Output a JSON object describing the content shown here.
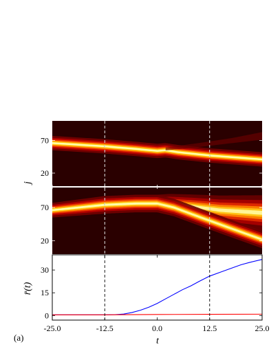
{
  "panel_tag": "(a)",
  "x_axis": {
    "label": "t",
    "range": [
      -25.0,
      25.0
    ],
    "ticks": [
      -25.0,
      -12.5,
      0.0,
      12.5,
      25.0
    ],
    "tick_labels": [
      "-25.0",
      "-12.5",
      "0.0",
      "12.5",
      "25.0"
    ]
  },
  "vlines_at_t": [
    -12.5,
    12.5
  ],
  "chart_data": [
    {
      "type": "heatmap",
      "ylabel": "j",
      "yticks": [
        20,
        70
      ],
      "ytick_labels": [
        "20",
        "70"
      ],
      "ylim": [
        0,
        100
      ],
      "colormap": "hot",
      "background_color": "#2a0000",
      "beams": [
        {
          "t": [
            -25,
            -12.5,
            -5,
            0,
            2,
            5,
            12.5,
            25
          ],
          "j": [
            66,
            61,
            57,
            54,
            55,
            52,
            47,
            41
          ],
          "width": [
            5,
            5,
            5,
            5,
            5,
            5,
            5,
            5
          ],
          "amp": [
            1,
            1,
            1,
            1,
            1,
            1,
            1,
            1
          ]
        },
        {
          "t": [
            2,
            10,
            18,
            25
          ],
          "j": [
            57,
            63,
            70,
            77
          ],
          "width": [
            3,
            4,
            5,
            6
          ],
          "amp": [
            0.05,
            0.12,
            0.18,
            0.22
          ]
        }
      ]
    },
    {
      "type": "heatmap",
      "ylabel": "",
      "yticks": [
        20,
        70
      ],
      "ytick_labels": [
        "20",
        "70"
      ],
      "ylim": [
        0,
        100
      ],
      "colormap": "hot",
      "background_color": "#2a0000",
      "beams": [
        {
          "t": [
            -25,
            -12.5,
            -5,
            0
          ],
          "j": [
            66,
            74,
            76,
            76
          ],
          "width": [
            5,
            6,
            6,
            6
          ],
          "amp": [
            0.95,
            0.95,
            1.0,
            1.0
          ]
        },
        {
          "t": [
            0,
            3,
            8,
            15,
            25
          ],
          "j": [
            76,
            75,
            72,
            66,
            62
          ],
          "width": [
            6,
            7,
            8,
            10,
            12
          ],
          "amp": [
            1.0,
            0.8,
            0.65,
            0.55,
            0.5
          ]
        },
        {
          "t": [
            0,
            4,
            10,
            17,
            25
          ],
          "j": [
            76,
            70,
            56,
            40,
            22
          ],
          "width": [
            6,
            6,
            6,
            6,
            6
          ],
          "amp": [
            1.0,
            0.85,
            0.78,
            0.75,
            0.72
          ]
        }
      ]
    },
    {
      "type": "line",
      "ylabel": "r̄(t)",
      "yticks": [
        0,
        15,
        30
      ],
      "ytick_labels": [
        "0",
        "15",
        "30"
      ],
      "ylim": [
        -3,
        40
      ],
      "series": [
        {
          "color": "#0000ff",
          "x": [
            -25,
            -12.5,
            -10,
            -8,
            -6,
            -4,
            -2,
            0,
            2,
            4,
            6,
            8,
            10,
            12.5,
            15,
            18,
            20,
            22,
            25
          ],
          "values": [
            0.5,
            0.5,
            0.6,
            1.0,
            2.0,
            3.5,
            5.5,
            8.0,
            11.0,
            14.0,
            17.0,
            19.5,
            22.5,
            26.0,
            28.5,
            31.5,
            33.5,
            35.0,
            37.0
          ]
        },
        {
          "color": "#ff0000",
          "x": [
            -25,
            -12.5,
            0,
            12.5,
            25
          ],
          "values": [
            0.5,
            0.5,
            0.7,
            0.8,
            0.9
          ]
        }
      ]
    }
  ]
}
